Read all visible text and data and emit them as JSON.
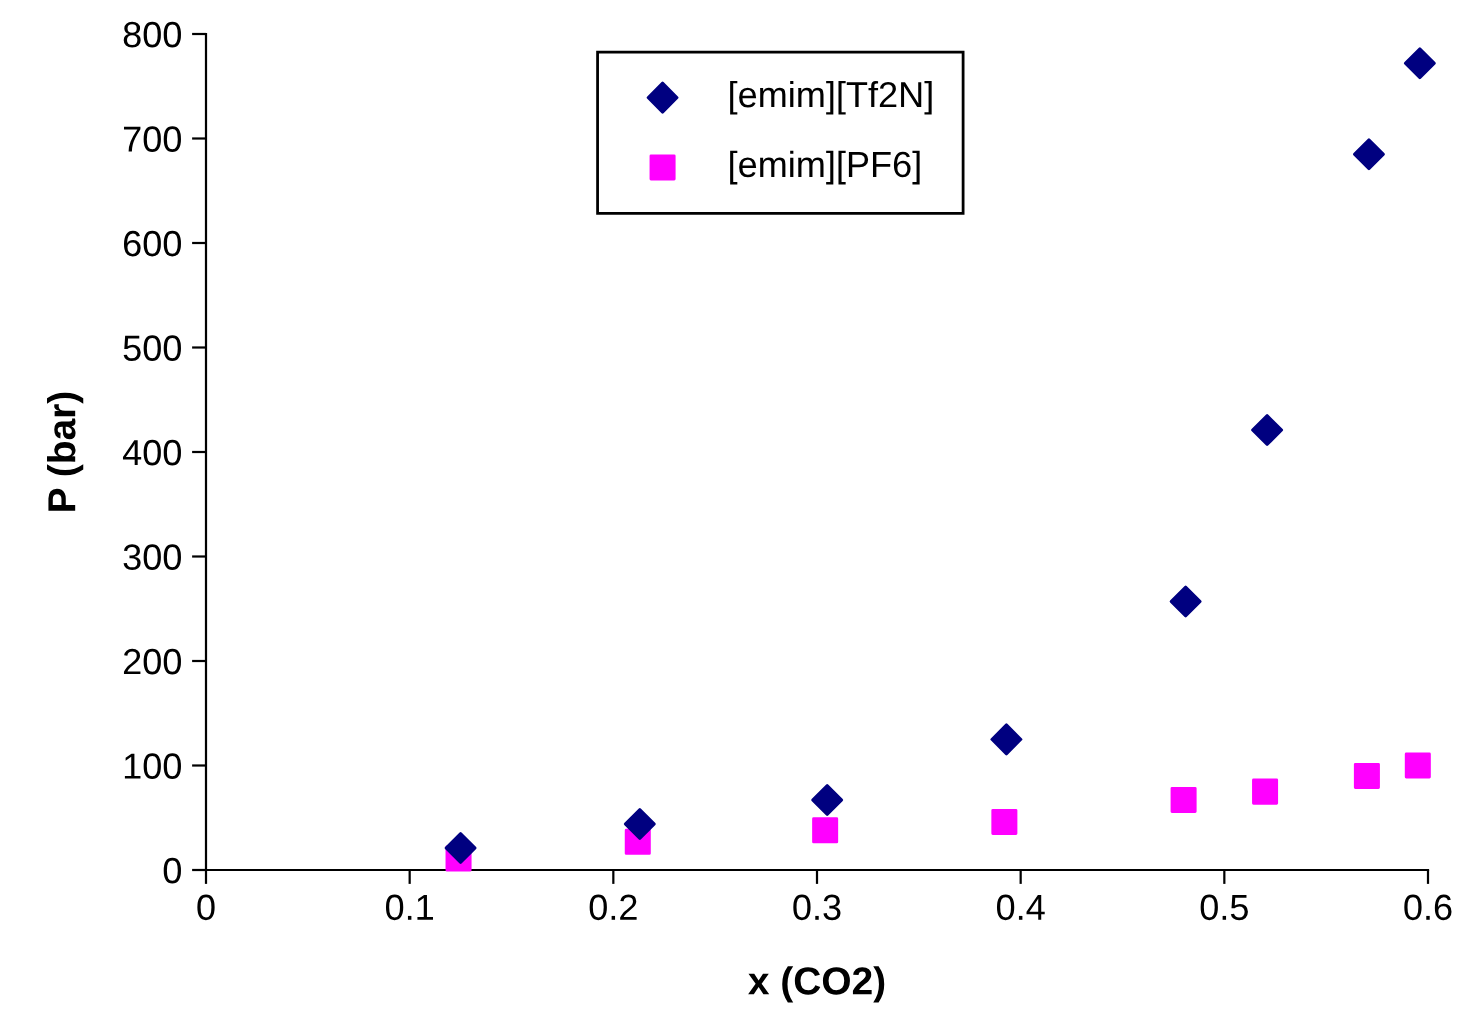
{
  "chart_data": {
    "type": "scatter",
    "xlabel": "x (CO2)",
    "ylabel": "P (bar)",
    "xlim": [
      0,
      0.6
    ],
    "xticks": [
      0,
      0.1,
      0.2,
      0.3,
      0.4,
      0.5,
      0.6
    ],
    "ylim": [
      0,
      800
    ],
    "yticks": [
      0,
      100,
      200,
      300,
      400,
      500,
      600,
      700,
      800
    ],
    "legend": "top",
    "grid": false,
    "series": [
      {
        "name": "[emim][Tf2N]",
        "color": "#000080",
        "marker": "diamond",
        "x": [
          0.125,
          0.213,
          0.305,
          0.393,
          0.481,
          0.521,
          0.571,
          0.596
        ],
        "values": [
          21,
          44,
          67,
          125,
          257,
          421,
          685,
          772
        ]
      },
      {
        "name": "[emim][PF6]",
        "color": "#ff00ff",
        "marker": "square",
        "x": [
          0.124,
          0.212,
          0.304,
          0.392,
          0.48,
          0.52,
          0.57,
          0.595
        ],
        "values": [
          11,
          27,
          38,
          46,
          67,
          75,
          90,
          100
        ]
      }
    ]
  }
}
